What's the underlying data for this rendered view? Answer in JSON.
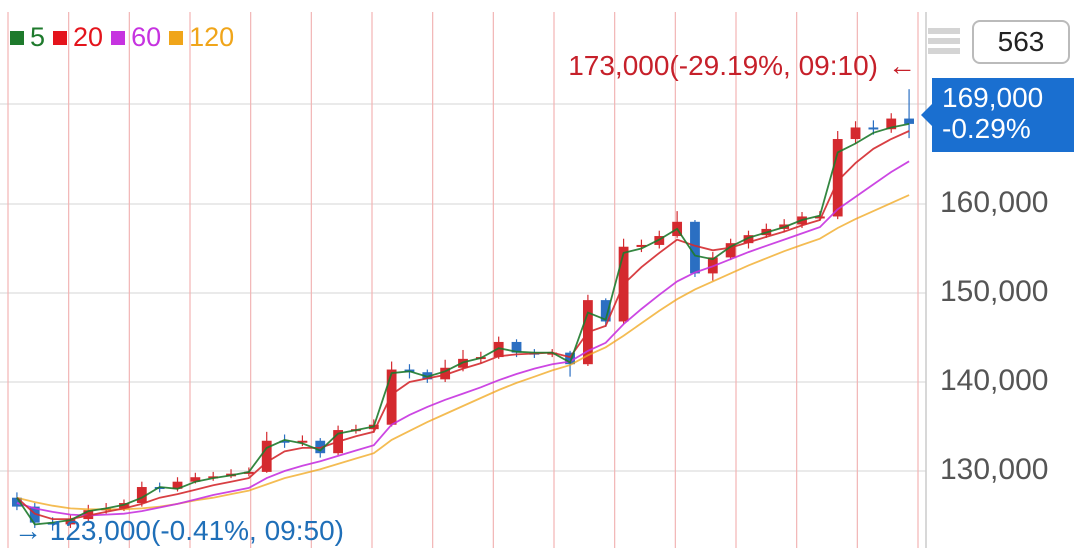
{
  "legend": [
    {
      "label": "5",
      "color": "#1e7a2c"
    },
    {
      "label": "20",
      "color": "#e4141c"
    },
    {
      "label": "60",
      "color": "#c633e0"
    },
    {
      "label": "120",
      "color": "#f0a51a"
    }
  ],
  "count": "563",
  "current": {
    "price": "169,000",
    "change": "-0.29%"
  },
  "annotations": {
    "high": "173,000(-29.19%, 09:10)",
    "high_arrow": "←",
    "low": "123,000(-0.41%, 09:50)",
    "low_arrow": "→"
  },
  "chart_data": {
    "type": "line",
    "ylim": [
      121000,
      174000
    ],
    "y_ticks": [
      {
        "value": 130000,
        "label": "130,000"
      },
      {
        "value": 140000,
        "label": "140,000"
      },
      {
        "value": 150000,
        "label": "150,000"
      },
      {
        "value": 160000,
        "label": "160,000"
      }
    ],
    "session_count": 15,
    "series": [
      {
        "name": "5",
        "color": "#1e7a2c",
        "values": [
          127000,
          124000,
          124200,
          124500,
          125500,
          125800,
          126200,
          127000,
          128200,
          128000,
          128800,
          129200,
          129500,
          129900,
          132600,
          133500,
          133100,
          132300,
          134200,
          134600,
          135000,
          141000,
          141200,
          140600,
          141200,
          142200,
          142700,
          143800,
          143400,
          143300,
          143300,
          142200,
          147800,
          147000,
          154500,
          155000,
          156000,
          157200,
          154200,
          153800,
          155200,
          156200,
          156800,
          157400,
          158200,
          158700,
          165800,
          166800,
          168000,
          168600,
          169000
        ]
      },
      {
        "name": "20",
        "color": "#d42a2f",
        "values": [
          127000,
          125200,
          124600,
          124600,
          125000,
          125400,
          125800,
          126300,
          127000,
          127400,
          127900,
          128400,
          128800,
          129200,
          131000,
          132200,
          132600,
          132600,
          133300,
          133900,
          134400,
          138600,
          140000,
          140400,
          140800,
          141500,
          142100,
          142900,
          143100,
          143200,
          143300,
          142800,
          145600,
          146300,
          151000,
          152900,
          154500,
          156000,
          155300,
          154800,
          155100,
          155700,
          156300,
          156900,
          157600,
          158200,
          162600,
          164600,
          166200,
          167300,
          168200
        ]
      },
      {
        "name": "60",
        "color": "#c633e0",
        "values": [
          126400,
          125800,
          125400,
          125100,
          125000,
          125100,
          125200,
          125500,
          125900,
          126300,
          126800,
          127300,
          127700,
          128100,
          129200,
          130000,
          130600,
          131100,
          131700,
          132300,
          132900,
          135200,
          136300,
          137200,
          138000,
          138700,
          139400,
          140200,
          140900,
          141500,
          142000,
          142300,
          143500,
          144400,
          146500,
          148200,
          149800,
          151300,
          152300,
          153000,
          153800,
          154600,
          155300,
          156000,
          156700,
          157400,
          159400,
          160800,
          162200,
          163600,
          164800
        ]
      },
      {
        "name": "120",
        "color": "#f0a51a",
        "values": [
          127000,
          126500,
          126100,
          125800,
          125700,
          125700,
          125700,
          125800,
          126000,
          126300,
          126700,
          127000,
          127400,
          127800,
          128500,
          129200,
          129700,
          130200,
          130800,
          131400,
          132000,
          133500,
          134500,
          135500,
          136400,
          137300,
          138200,
          139100,
          139900,
          140600,
          141300,
          141900,
          143000,
          143900,
          145200,
          146600,
          148000,
          149300,
          150400,
          151300,
          152200,
          153100,
          153900,
          154700,
          155400,
          156100,
          157300,
          158300,
          159200,
          160100,
          161000
        ]
      }
    ],
    "candles": [
      [
        127000,
        126000,
        127600,
        125600
      ],
      [
        126000,
        124200,
        126400,
        123600
      ],
      [
        124200,
        124000,
        124800,
        123300
      ],
      [
        124000,
        124600,
        125000,
        123600
      ],
      [
        124600,
        125600,
        126200,
        124200
      ],
      [
        125600,
        125800,
        126400,
        125200
      ],
      [
        125800,
        126400,
        126800,
        125500
      ],
      [
        126400,
        128200,
        128800,
        126000
      ],
      [
        128200,
        128000,
        128700,
        127600
      ],
      [
        128000,
        128800,
        129300,
        127700
      ],
      [
        128800,
        129300,
        129800,
        128600
      ],
      [
        129300,
        129400,
        129900,
        128900
      ],
      [
        129400,
        129700,
        130200,
        129200
      ],
      [
        129700,
        129900,
        130400,
        129400
      ],
      [
        129900,
        133400,
        134400,
        129800
      ],
      [
        133400,
        133200,
        134100,
        132600
      ],
      [
        133200,
        133400,
        134000,
        132800
      ],
      [
        133400,
        132000,
        133700,
        131500
      ],
      [
        132000,
        134600,
        135100,
        131800
      ],
      [
        134600,
        134700,
        135200,
        134200
      ],
      [
        134700,
        135200,
        135800,
        134300
      ],
      [
        135200,
        141400,
        142300,
        135000
      ],
      [
        141400,
        141100,
        142000,
        140400
      ],
      [
        141100,
        140300,
        141400,
        139900
      ],
      [
        140300,
        141600,
        142500,
        140000
      ],
      [
        141600,
        142600,
        143600,
        141200
      ],
      [
        142600,
        142800,
        143400,
        142100
      ],
      [
        142800,
        144500,
        145100,
        142600
      ],
      [
        144500,
        143300,
        144800,
        142800
      ],
      [
        143300,
        143100,
        143700,
        142700
      ],
      [
        143100,
        143300,
        143700,
        142800
      ],
      [
        143300,
        142000,
        143500,
        140600
      ],
      [
        142000,
        149200,
        149800,
        141800
      ],
      [
        149200,
        146800,
        149400,
        146200
      ],
      [
        146800,
        155200,
        156100,
        146500
      ],
      [
        155200,
        155400,
        156000,
        154600
      ],
      [
        155400,
        156400,
        157000,
        155000
      ],
      [
        156400,
        158000,
        159200,
        156200
      ],
      [
        158000,
        152200,
        158200,
        151800
      ],
      [
        152200,
        154000,
        154600,
        151400
      ],
      [
        154000,
        155600,
        156100,
        153700
      ],
      [
        155600,
        156500,
        157000,
        155000
      ],
      [
        156500,
        157200,
        157800,
        156200
      ],
      [
        157200,
        157700,
        158300,
        156800
      ],
      [
        157700,
        158600,
        159100,
        157300
      ],
      [
        158600,
        158600,
        159200,
        158100
      ],
      [
        158600,
        167300,
        168200,
        158300
      ],
      [
        167300,
        168600,
        169300,
        166800
      ],
      [
        168600,
        168400,
        169400,
        167800
      ],
      [
        168400,
        169600,
        170200,
        168000
      ],
      [
        169600,
        169000,
        172900,
        167400
      ]
    ]
  }
}
